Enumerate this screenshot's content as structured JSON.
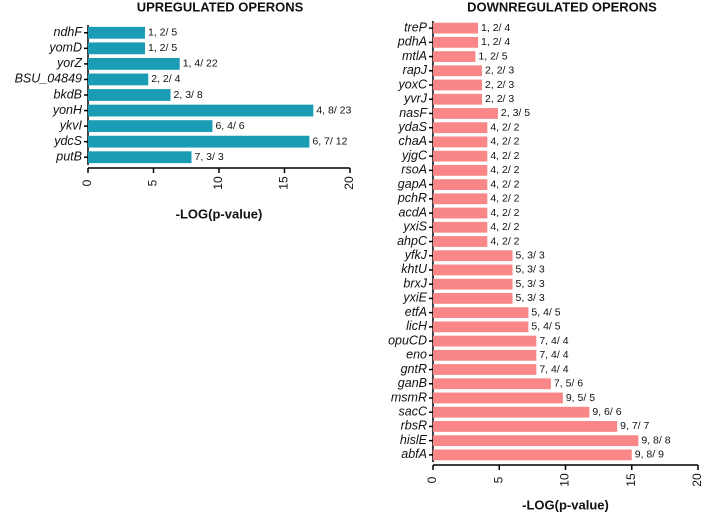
{
  "chart_data": [
    {
      "type": "bar",
      "orientation": "horizontal",
      "title": "UPREGULATED OPERONS",
      "x_label": "-LOG(p-value)",
      "color": "#1a9db4",
      "categories": [
        "ndhF",
        "yomD",
        "yorZ",
        "BSU_04849",
        "bkdB",
        "yonH",
        "ykvI",
        "ydcS",
        "putB"
      ],
      "values": [
        4.35,
        4.35,
        7.0,
        4.6,
        6.3,
        17.2,
        9.5,
        16.9,
        7.9
      ],
      "bar_labels": [
        "1, 2/ 5",
        "1, 2/ 5",
        "1, 4/ 22",
        "2, 2/ 4",
        "2, 3/ 8",
        "4, 8/ 23",
        "6, 4/ 6",
        "6, 7/ 12",
        "7, 3/ 3"
      ],
      "xlim": [
        0,
        20
      ],
      "xticks": [
        0,
        5,
        10,
        15,
        20
      ]
    },
    {
      "type": "bar",
      "orientation": "horizontal",
      "title": "DOWNREGULATED OPERONS",
      "x_label": "-LOG(p-value)",
      "color": "#f98787",
      "categories": [
        "treP",
        "pdhA",
        "mtlA",
        "rapJ",
        "yoxC",
        "yvrJ",
        "nasF",
        "ydaS",
        "chaA",
        "yjgC",
        "rsoA",
        "gapA",
        "pchR",
        "acdA",
        "yxiS",
        "ahpC",
        "yfkJ",
        "khtU",
        "brxJ",
        "yxiE",
        "etfA",
        "licH",
        "opuCD",
        "eno",
        "gntR",
        "ganB",
        "msmR",
        "sacC",
        "rbsR",
        "hislE",
        "abfA"
      ],
      "values": [
        3.4,
        3.4,
        3.2,
        3.7,
        3.7,
        3.7,
        4.9,
        4.1,
        4.1,
        4.1,
        4.1,
        4.1,
        4.1,
        4.1,
        4.1,
        4.1,
        6.0,
        6.0,
        6.0,
        6.0,
        7.2,
        7.2,
        7.8,
        7.8,
        7.8,
        8.9,
        9.8,
        11.8,
        13.9,
        15.5,
        15.0
      ],
      "bar_labels": [
        "1, 2/ 4",
        "1, 2/ 4",
        "1, 2/ 5",
        "2, 2/ 3",
        "2, 2/ 3",
        "2, 2/ 3",
        "2, 3/ 5",
        "4, 2/ 2",
        "4, 2/ 2",
        "4, 2/ 2",
        "4, 2/ 2",
        "4, 2/ 2",
        "4, 2/ 2",
        "4, 2/ 2",
        "4, 2/ 2",
        "4, 2/ 2",
        "5, 3/ 3",
        "5, 3/ 3",
        "5, 3/ 3",
        "5, 3/ 3",
        "5, 4/ 5",
        "5, 4/ 5",
        "7, 4/ 4",
        "7, 4/ 4",
        "7, 4/ 4",
        "7, 5/ 6",
        "9, 5/ 5",
        "9, 6/ 6",
        "9, 7/ 7",
        "9, 8/ 8",
        "9, 8/ 9"
      ],
      "xlim": [
        0,
        20
      ],
      "xticks": [
        0,
        5,
        10,
        15,
        20
      ]
    }
  ]
}
